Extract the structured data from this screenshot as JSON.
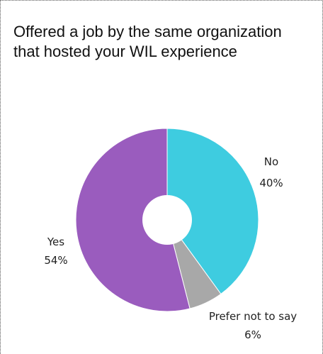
{
  "chart_data": {
    "type": "pie",
    "donut": true,
    "title_lines": [
      "Offered a job by the same organization",
      "that hosted your WIL experience"
    ],
    "slices": [
      {
        "label": "No",
        "value": 40,
        "value_label": "40%",
        "color": "#3ECCE0"
      },
      {
        "label": "Prefer not to say",
        "value": 6,
        "value_label": "6%",
        "color": "#A8A8A8"
      },
      {
        "label": "Yes",
        "value": 54,
        "value_label": "54%",
        "color": "#9A5CBE"
      }
    ]
  }
}
